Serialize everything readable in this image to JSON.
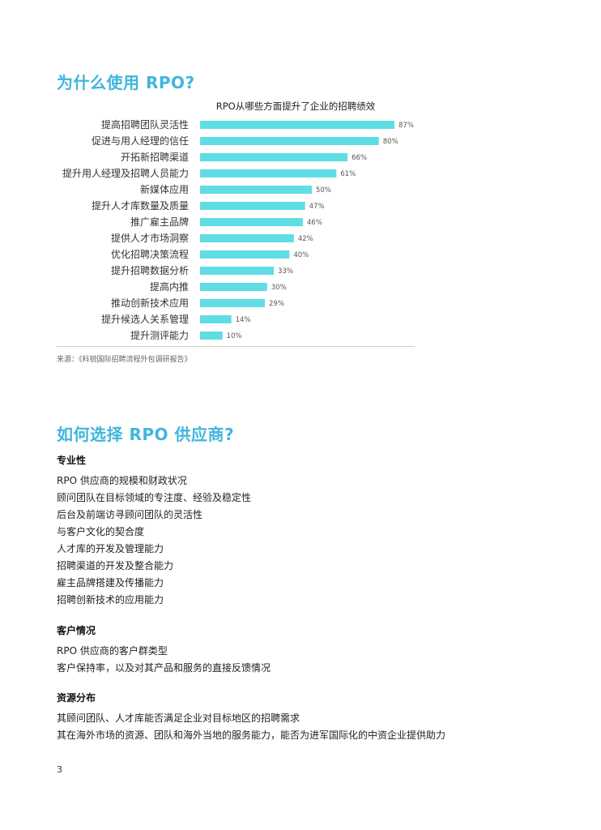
{
  "headings": {
    "why": "为什么使用 RPO?",
    "how": "如何选择 RPO 供应商?"
  },
  "chart_data": {
    "type": "bar",
    "orientation": "horizontal",
    "title": "RPO从哪些方面提升了企业的招聘绩效",
    "categories": [
      "提高招聘团队灵活性",
      "促进与用人经理的信任",
      "开拓新招聘渠道",
      "提升用人经理及招聘人员能力",
      "新媒体应用",
      "提升人才库数量及质量",
      "推广雇主品牌",
      "提供人才市场洞察",
      "优化招聘决策流程",
      "提升招聘数据分析",
      "提高内推",
      "推动创新技术应用",
      "提升候选人关系管理",
      "提升测评能力"
    ],
    "values": [
      87,
      80,
      66,
      61,
      50,
      47,
      46,
      42,
      40,
      33,
      30,
      29,
      14,
      10
    ],
    "value_labels": [
      "87%",
      "80%",
      "66%",
      "61%",
      "50%",
      "47%",
      "46%",
      "42%",
      "40%",
      "33%",
      "30%",
      "29%",
      "14%",
      "10%"
    ],
    "xlim": [
      0,
      100
    ],
    "bar_color": "#5fdde4",
    "grid": false
  },
  "source": "来源：《科锐国际招聘流程外包调研报告》",
  "sections": [
    {
      "title": "专业性",
      "items": [
        "RPO 供应商的规模和财政状况",
        "顾问团队在目标领域的专注度、经验及稳定性",
        "后台及前端访寻顾问团队的灵活性",
        "与客户文化的契合度",
        "人才库的开发及管理能力",
        "招聘渠道的开发及整合能力",
        "雇主品牌搭建及传播能力",
        "招聘创新技术的应用能力"
      ]
    },
    {
      "title": "客户情况",
      "items": [
        "RPO 供应商的客户群类型",
        "客户保持率，以及对其产品和服务的直接反馈情况"
      ]
    },
    {
      "title": "资源分布",
      "items": [
        "其顾问团队、人才库能否满足企业对目标地区的招聘需求",
        "其在海外市场的资源、团队和海外当地的服务能力，能否为进军国际化的中资企业提供助力"
      ]
    }
  ],
  "page_number": "3",
  "accent_color": "#3fb6dc"
}
